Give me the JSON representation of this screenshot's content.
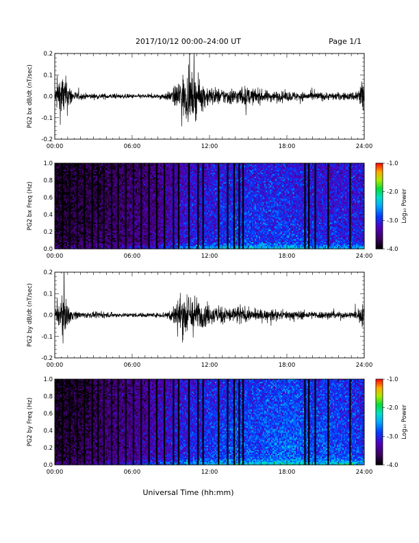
{
  "header": {
    "date_range": "2017/10/12   00:00–24:00 UT",
    "page": "Page 1/1"
  },
  "xaxis": {
    "label": "Universal Time (hh:mm)",
    "ticks": [
      "00:00",
      "06:00",
      "12:00",
      "18:00",
      "24:00"
    ],
    "range_hours": [
      0,
      24
    ]
  },
  "colors": {
    "trace": "#000000",
    "background": "#ffffff"
  },
  "chart_data": [
    {
      "type": "line",
      "name": "bx-waveform",
      "ylabel": "PG2 bx dB/dt (nT/sec)",
      "ylim": [
        -0.2,
        0.2
      ],
      "yticks": [
        "0.2",
        "0.1",
        "0.0",
        "-0.1",
        "-0.2"
      ],
      "x_hours": [
        0,
        0.3,
        0.6,
        1,
        1.4,
        2,
        3,
        4,
        5,
        6,
        7,
        8,
        8.8,
        9,
        9.4,
        9.8,
        10,
        10.4,
        10.8,
        11.2,
        11.6,
        12,
        12.4,
        12.8,
        13.2,
        13.6,
        14,
        14.4,
        14.8,
        15.2,
        15.6,
        16,
        16.5,
        17,
        17.5,
        18,
        18.5,
        19,
        19.5,
        20,
        20.5,
        21,
        21.5,
        22,
        22.5,
        23,
        23.4,
        23.7,
        24
      ],
      "envelope_amplitude": [
        0.05,
        0.2,
        0.2,
        0.15,
        0.05,
        0.03,
        0.025,
        0.025,
        0.02,
        0.02,
        0.02,
        0.02,
        0.04,
        0.05,
        0.1,
        0.2,
        0.2,
        0.2,
        0.2,
        0.15,
        0.11,
        0.09,
        0.08,
        0.07,
        0.07,
        0.08,
        0.07,
        0.08,
        0.09,
        0.07,
        0.07,
        0.06,
        0.05,
        0.05,
        0.045,
        0.045,
        0.045,
        0.04,
        0.04,
        0.04,
        0.04,
        0.035,
        0.035,
        0.035,
        0.035,
        0.035,
        0.06,
        0.12,
        0.2
      ]
    },
    {
      "type": "heatmap",
      "name": "bx-spectrogram",
      "ylabel": "PG2 bx Freq (Hz)",
      "ylim": [
        0,
        1.0
      ],
      "yticks": [
        "1.0",
        "0.8",
        "0.6",
        "0.4",
        "0.2",
        "0.0"
      ],
      "colorbar": {
        "label": "Log₁₀ Power",
        "range": [
          -4.0,
          -1.0
        ],
        "ticks": [
          "-1.0",
          "-2.0",
          "-3.0",
          "-4.0"
        ]
      },
      "x_hours": [
        0,
        2,
        4,
        6,
        8,
        10,
        12,
        14,
        16,
        18,
        20,
        22,
        24
      ],
      "mean_log_power": [
        -3.8,
        -3.7,
        -3.6,
        -3.5,
        -3.4,
        -3.1,
        -3.0,
        -2.9,
        -2.9,
        -2.9,
        -3.0,
        -3.0,
        -3.0
      ],
      "dark_stripe_hours": [
        0.6,
        1.15,
        1.75,
        2.3,
        2.9,
        3.35,
        3.8,
        4.4,
        4.9,
        5.5,
        6.1,
        6.7,
        7.3,
        7.9,
        8.5,
        9.2,
        9.6,
        10.4,
        11.1,
        11.5,
        12.7,
        13.4,
        13.9,
        14.3,
        14.6,
        19.4,
        19.7,
        20.2,
        21.2,
        22.9
      ]
    },
    {
      "type": "line",
      "name": "by-waveform",
      "ylabel": "PG2 by dB/dt (nT/sec)",
      "ylim": [
        -0.2,
        0.2
      ],
      "yticks": [
        "0.2",
        "0.1",
        "0.0",
        "-0.1",
        "-0.2"
      ],
      "x_hours": [
        0,
        0.3,
        0.6,
        1,
        1.4,
        2,
        3,
        4,
        5,
        6,
        7,
        8,
        8.8,
        9,
        9.4,
        9.8,
        10,
        10.4,
        10.8,
        11.2,
        11.6,
        12,
        12.4,
        12.8,
        13.2,
        13.6,
        14,
        14.4,
        14.8,
        15.2,
        15.6,
        16,
        16.5,
        17,
        17.5,
        18,
        18.5,
        19,
        19.5,
        20,
        20.5,
        21,
        21.5,
        22,
        22.5,
        23,
        23.4,
        23.7,
        24
      ],
      "envelope_amplitude": [
        0.05,
        0.1,
        0.2,
        0.1,
        0.04,
        0.03,
        0.025,
        0.025,
        0.02,
        0.02,
        0.02,
        0.02,
        0.04,
        0.06,
        0.12,
        0.2,
        0.2,
        0.2,
        0.18,
        0.13,
        0.1,
        0.09,
        0.08,
        0.08,
        0.08,
        0.07,
        0.08,
        0.1,
        0.06,
        0.05,
        0.05,
        0.05,
        0.045,
        0.045,
        0.04,
        0.04,
        0.04,
        0.04,
        0.035,
        0.035,
        0.035,
        0.035,
        0.035,
        0.03,
        0.03,
        0.03,
        0.04,
        0.08,
        0.12
      ]
    },
    {
      "type": "heatmap",
      "name": "by-spectrogram",
      "ylabel": "PG2 by Freq (Hz)",
      "ylim": [
        0,
        1.0
      ],
      "yticks": [
        "1.0",
        "0.8",
        "0.6",
        "0.4",
        "0.2",
        "0.0"
      ],
      "colorbar": {
        "label": "Log₁₀ Power",
        "range": [
          -4.0,
          -1.0
        ],
        "ticks": [
          "-1.0",
          "-2.0",
          "-3.0",
          "-4.0"
        ]
      },
      "x_hours": [
        0,
        2,
        4,
        6,
        8,
        10,
        12,
        14,
        16,
        18,
        20,
        22,
        24
      ],
      "mean_log_power": [
        -3.8,
        -3.7,
        -3.5,
        -3.4,
        -3.2,
        -3.0,
        -2.9,
        -2.8,
        -2.8,
        -2.7,
        -2.8,
        -2.8,
        -2.9
      ],
      "dark_stripe_hours": [
        0.6,
        1.15,
        1.75,
        2.3,
        2.9,
        3.35,
        3.8,
        4.4,
        4.9,
        5.5,
        6.1,
        6.7,
        7.3,
        7.9,
        8.5,
        9.2,
        9.6,
        10.4,
        11.1,
        11.5,
        12.7,
        13.4,
        13.9,
        14.3,
        14.6,
        19.4,
        19.7,
        20.2,
        21.2,
        22.9
      ]
    }
  ]
}
